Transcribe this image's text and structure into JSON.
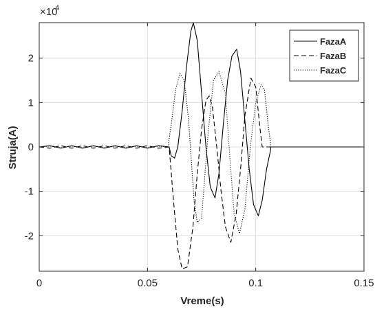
{
  "chart_data": {
    "type": "line",
    "title": "",
    "xlabel": "Vreme(s)",
    "ylabel": "Struja(A)",
    "xlim": [
      0,
      0.15
    ],
    "ylim": [
      -28000,
      28000
    ],
    "y_exponent_label": "×10",
    "y_exponent_power": "4",
    "x_ticks": [
      0,
      0.05,
      0.1,
      0.15
    ],
    "x_tick_labels": [
      "0",
      "0.05",
      "0.1",
      "0.15"
    ],
    "y_ticks": [
      -20000,
      -10000,
      0,
      10000,
      20000
    ],
    "y_tick_labels": [
      "-2",
      "-1",
      "0",
      "1",
      "2"
    ],
    "grid": true,
    "legend_position": "top-right",
    "series": [
      {
        "name": "FazaA",
        "dash": "solid",
        "color": "#000000",
        "x": [
          0,
          0.005,
          0.01,
          0.015,
          0.02,
          0.025,
          0.03,
          0.035,
          0.04,
          0.045,
          0.05,
          0.055,
          0.06,
          0.061,
          0.0625,
          0.064,
          0.066,
          0.068,
          0.07,
          0.0712,
          0.073,
          0.075,
          0.077,
          0.079,
          0.0812,
          0.083,
          0.085,
          0.087,
          0.089,
          0.0912,
          0.093,
          0.095,
          0.097,
          0.099,
          0.1012,
          0.103,
          0.105,
          0.1068,
          0.107,
          0.15
        ],
        "y": [
          0,
          300,
          -300,
          300,
          -300,
          300,
          -300,
          300,
          -300,
          300,
          -300,
          300,
          0,
          -2000,
          -2500,
          0,
          8000,
          18000,
          26000,
          28000,
          24000,
          12000,
          0,
          -9000,
          -11500,
          -6000,
          5000,
          15000,
          20500,
          22000,
          17000,
          6000,
          -5000,
          -13000,
          -15500,
          -12000,
          -5000,
          -800,
          0,
          0
        ]
      },
      {
        "name": "FazaB",
        "dash": "dashed",
        "color": "#000000",
        "x": [
          0,
          0.005,
          0.01,
          0.015,
          0.02,
          0.025,
          0.03,
          0.035,
          0.04,
          0.045,
          0.05,
          0.055,
          0.06,
          0.062,
          0.064,
          0.066,
          0.0685,
          0.071,
          0.073,
          0.075,
          0.077,
          0.0785,
          0.08,
          0.082,
          0.084,
          0.086,
          0.0885,
          0.091,
          0.093,
          0.095,
          0.0978,
          0.1,
          0.102,
          0.103,
          0.1035,
          0.15
        ],
        "y": [
          0,
          -300,
          300,
          -300,
          300,
          -300,
          300,
          -300,
          300,
          -300,
          300,
          -300,
          0,
          -12000,
          -23000,
          -27500,
          -27000,
          -18000,
          -6000,
          4000,
          10500,
          11500,
          9000,
          0,
          -10000,
          -18000,
          -21500,
          -15000,
          -5000,
          7000,
          15500,
          13500,
          4000,
          0,
          0,
          0
        ]
      },
      {
        "name": "FazaC",
        "dash": "dotted",
        "color": "#000000",
        "x": [
          0,
          0.005,
          0.01,
          0.015,
          0.02,
          0.025,
          0.03,
          0.035,
          0.04,
          0.045,
          0.05,
          0.055,
          0.0595,
          0.0615,
          0.063,
          0.065,
          0.067,
          0.069,
          0.0715,
          0.073,
          0.075,
          0.078,
          0.0805,
          0.083,
          0.086,
          0.088,
          0.09,
          0.0925,
          0.095,
          0.0975,
          0.1,
          0.1025,
          0.104,
          0.1055,
          0.107,
          0.15
        ],
        "y": [
          0,
          200,
          -200,
          200,
          -200,
          200,
          -200,
          200,
          -200,
          200,
          -200,
          200,
          0,
          7000,
          13000,
          16500,
          15000,
          6000,
          -12000,
          -17000,
          -16000,
          3000,
          15000,
          17000,
          12000,
          -2000,
          -15000,
          -19500,
          -14000,
          0,
          10000,
          14000,
          13000,
          6000,
          0,
          0
        ]
      }
    ]
  }
}
